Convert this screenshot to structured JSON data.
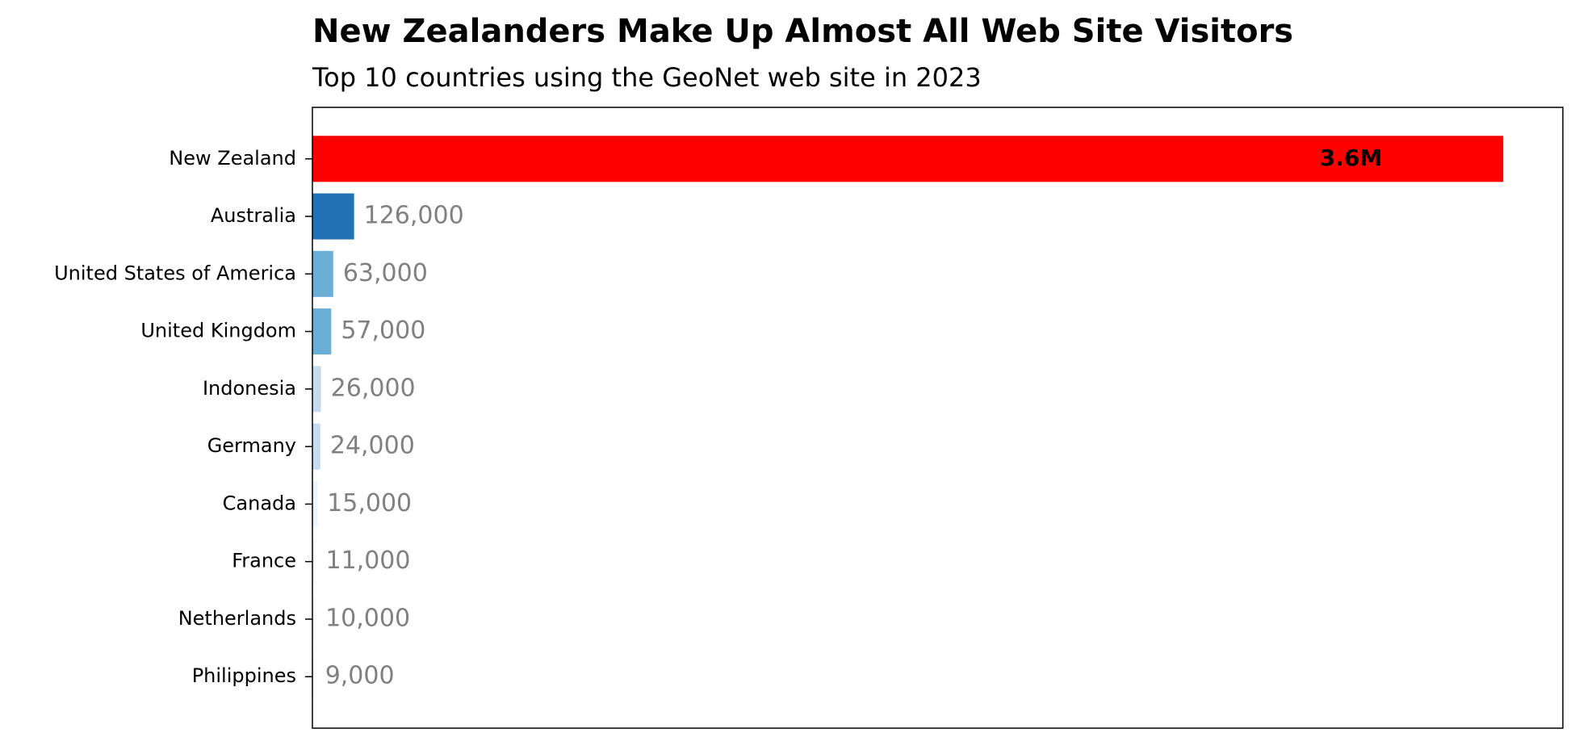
{
  "chart_data": {
    "type": "bar",
    "orientation": "horizontal",
    "title": "New Zealanders Make Up Almost All Web Site Visitors",
    "subtitle": "Top 10 countries using the GeoNet web site in 2023",
    "categories": [
      "New Zealand",
      "Australia",
      "United States of America",
      "United Kingdom",
      "Indonesia",
      "Germany",
      "Canada",
      "France",
      "Netherlands",
      "Philippines"
    ],
    "values": [
      3600000,
      126000,
      63000,
      57000,
      26000,
      24000,
      15000,
      11000,
      10000,
      9000
    ],
    "value_labels": [
      "3.6M",
      "126,000",
      "63,000",
      "57,000",
      "26,000",
      "24,000",
      "15,000",
      "11,000",
      "10,000",
      "9,000"
    ],
    "colors": [
      "#ff0000",
      "#2171b5",
      "#6baed6",
      "#6baed6",
      "#c6dbef",
      "#c6dbef",
      "#eef4fb",
      "#f4f8fc",
      "#f6f9fd",
      "#f7fbff"
    ],
    "xlim": [
      0,
      3780000
    ]
  }
}
